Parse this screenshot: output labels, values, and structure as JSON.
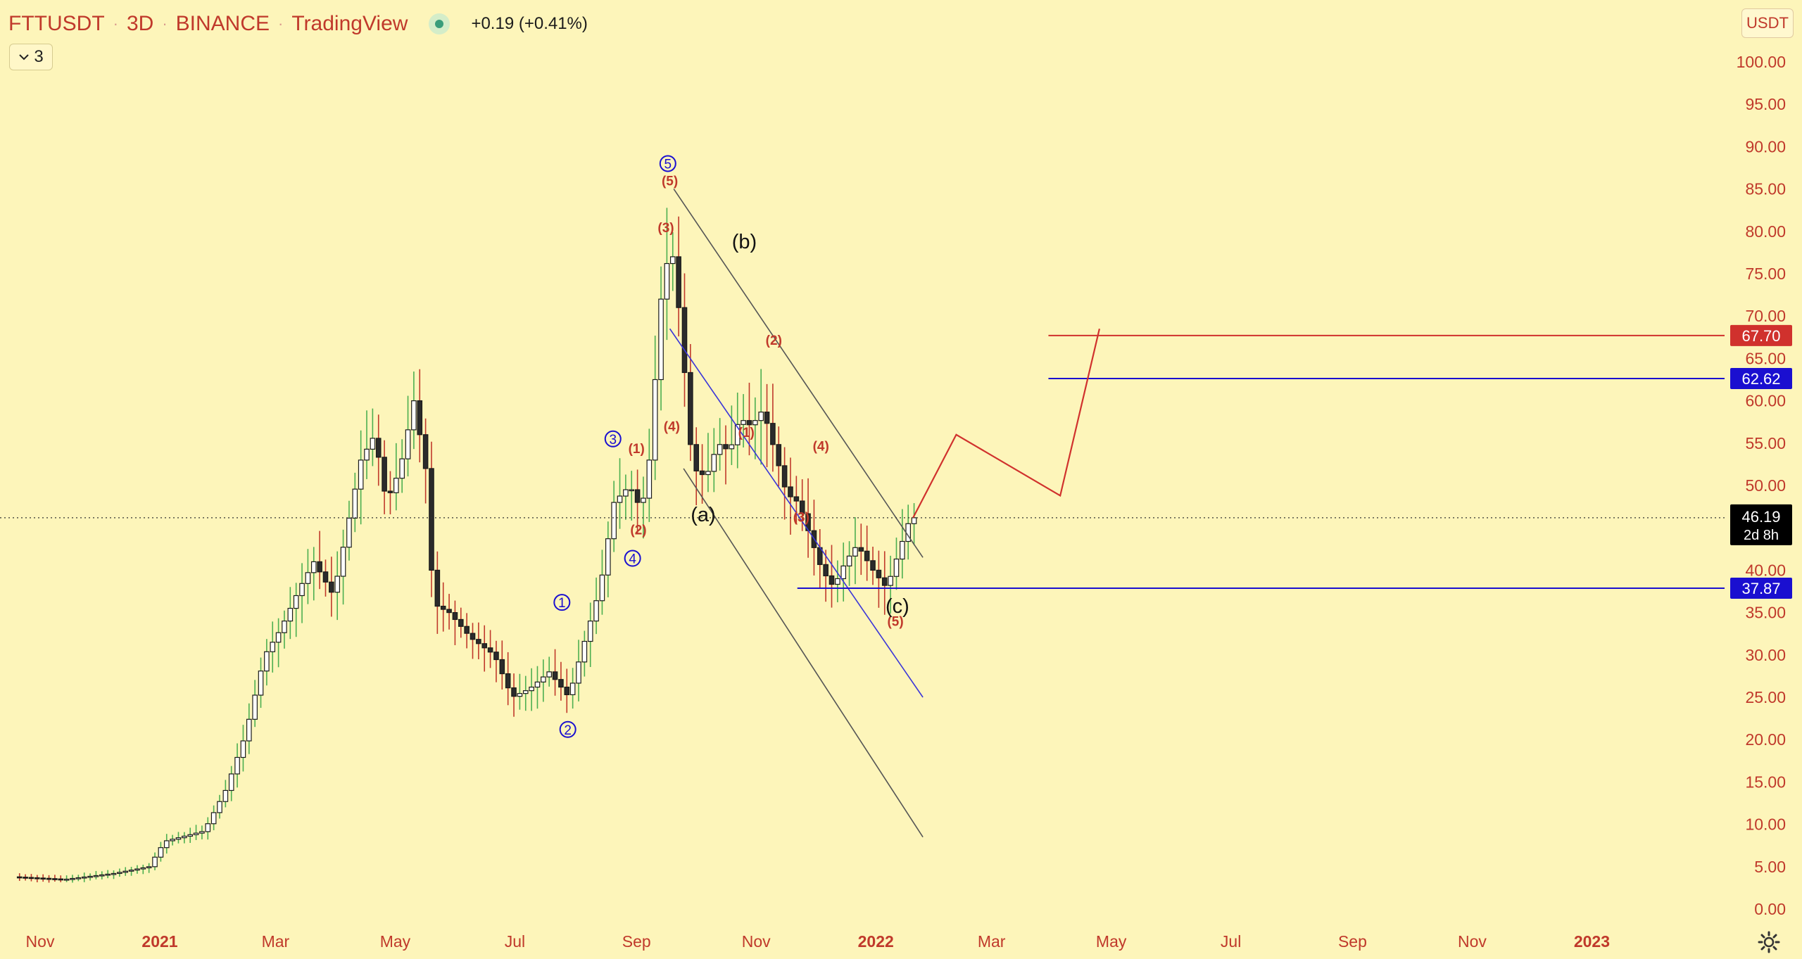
{
  "header": {
    "symbol": "FTTUSDT",
    "interval": "3D",
    "exchange": "BINANCE",
    "source": "TradingView",
    "change": "+0.19 (+0.41%)",
    "toggle_count": "3",
    "unit_label": "USDT"
  },
  "colors": {
    "background": "#fdf5ba",
    "axis_text": "#c0392b",
    "candle_body": "#ffffff",
    "candle_outline": "#1a1a1a",
    "wick_up": "#4caf50",
    "wick_down": "#c0392b",
    "wave_primary": "#1a0fd0",
    "wave_minor": "#c0392b",
    "projection": "#d0312d",
    "channel_grey": "#555555",
    "channel_blue": "#3a35d8"
  },
  "icons": [
    "chevron-down-icon",
    "live-dot-icon",
    "settings-gear-icon"
  ],
  "chart_data": {
    "type": "candlestick",
    "y_axis": {
      "min": 0,
      "max": 100,
      "ticks": [
        "100.00",
        "95.00",
        "90.00",
        "85.00",
        "80.00",
        "75.00",
        "70.00",
        "65.00",
        "60.00",
        "55.00",
        "50.00",
        "45.00",
        "40.00",
        "35.00",
        "30.00",
        "25.00",
        "20.00",
        "15.00",
        "10.00",
        "5.00",
        "0.00"
      ]
    },
    "x_axis": {
      "labels": [
        "Nov",
        "2021",
        "Mar",
        "May",
        "Jul",
        "Sep",
        "Nov",
        "2022",
        "Mar",
        "May",
        "Jul",
        "Sep",
        "Nov",
        "2023"
      ],
      "bold": [
        "2021",
        "2022",
        "2023"
      ]
    },
    "price_path": [
      [
        "2020-10-20",
        3.8
      ],
      [
        "2020-11-15",
        3.5
      ],
      [
        "2020-12-10",
        4.2
      ],
      [
        "2020-12-28",
        5.0
      ],
      [
        "2021-01-05",
        8.0
      ],
      [
        "2021-01-25",
        9.2
      ],
      [
        "2021-02-05",
        14.0
      ],
      [
        "2021-02-15",
        20.5
      ],
      [
        "2021-02-25",
        30.0
      ],
      [
        "2021-03-05",
        33.0
      ],
      [
        "2021-03-15",
        38.0
      ],
      [
        "2021-03-22",
        41.0
      ],
      [
        "2021-04-01",
        37.0
      ],
      [
        "2021-04-08",
        45.0
      ],
      [
        "2021-04-15",
        53.0
      ],
      [
        "2021-04-22",
        56.0
      ],
      [
        "2021-04-28",
        48.0
      ],
      [
        "2021-05-05",
        52.0
      ],
      [
        "2021-05-12",
        60.0
      ],
      [
        "2021-05-18",
        52.0
      ],
      [
        "2021-05-22",
        36.0
      ],
      [
        "2021-05-30",
        35.0
      ],
      [
        "2021-06-10",
        32.0
      ],
      [
        "2021-06-22",
        30.0
      ],
      [
        "2021-07-01",
        25.0
      ],
      [
        "2021-07-10",
        26.0
      ],
      [
        "2021-07-20",
        28.0
      ],
      [
        "2021-07-30",
        25.0
      ],
      [
        "2021-08-05",
        30.0
      ],
      [
        "2021-08-15",
        38.0
      ],
      [
        "2021-08-22",
        48.0
      ],
      [
        "2021-08-30",
        50.0
      ],
      [
        "2021-09-05",
        47.0
      ],
      [
        "2021-09-09",
        53.0
      ],
      [
        "2021-09-15",
        72.0
      ],
      [
        "2021-09-20",
        79.0
      ],
      [
        "2021-09-25",
        69.0
      ],
      [
        "2021-10-01",
        52.0
      ],
      [
        "2021-10-08",
        51.0
      ],
      [
        "2021-10-14",
        55.0
      ],
      [
        "2021-10-20",
        54.0
      ],
      [
        "2021-10-25",
        58.0
      ],
      [
        "2021-10-31",
        57.0
      ],
      [
        "2021-11-06",
        59.0
      ],
      [
        "2021-11-12",
        54.0
      ],
      [
        "2021-11-18",
        49.0
      ],
      [
        "2021-11-24",
        48.0
      ],
      [
        "2021-11-30",
        44.0
      ],
      [
        "2021-12-06",
        40.0
      ],
      [
        "2021-12-12",
        38.0
      ],
      [
        "2021-12-18",
        41.0
      ],
      [
        "2021-12-24",
        43.0
      ],
      [
        "2022-01-01",
        40.0
      ],
      [
        "2022-01-08",
        37.9
      ],
      [
        "2022-01-14",
        42.0
      ],
      [
        "2022-01-20",
        46.19
      ]
    ],
    "last_price": "46.19",
    "last_price_countdown": "2d 8h",
    "price_levels": [
      {
        "label": "67.70",
        "color": "#d0312d"
      },
      {
        "label": "62.62",
        "color": "#1a0fd0"
      },
      {
        "label": "37.87",
        "color": "#1a0fd0"
      }
    ],
    "level_values": [
      67.7,
      62.62,
      37.87
    ],
    "projection_path": [
      [
        "2022-01-20",
        46.19
      ],
      [
        "2022-02-11",
        56.0
      ],
      [
        "2022-04-05",
        48.8
      ],
      [
        "2022-04-25",
        68.5
      ]
    ],
    "channels": [
      {
        "color": "grey",
        "from": [
          "2021-09-20",
          85.0
        ],
        "to": [
          "2022-01-25",
          41.5
        ]
      },
      {
        "color": "grey",
        "from": [
          "2021-09-25",
          52.0
        ],
        "to": [
          "2022-01-25",
          8.5
        ]
      },
      {
        "color": "blue",
        "from": [
          "2021-09-18",
          68.5
        ],
        "to": [
          "2022-01-25",
          25.0
        ]
      }
    ],
    "wave_labels_primary": [
      {
        "text": "1",
        "x": "2021-07-25",
        "y": 36.2
      },
      {
        "text": "2",
        "x": "2021-07-28",
        "y": 21.2
      },
      {
        "text": "3",
        "x": "2021-08-20",
        "y": 55.5
      },
      {
        "text": "4",
        "x": "2021-08-30",
        "y": 41.4
      },
      {
        "text": "5",
        "x": "2021-09-17",
        "y": 88.0
      }
    ],
    "wave_labels_minor": [
      {
        "text": "(1)",
        "x": "2021-09-01",
        "y": 54.4
      },
      {
        "text": "(2)",
        "x": "2021-09-02",
        "y": 44.8
      },
      {
        "text": "(3)",
        "x": "2021-09-16",
        "y": 80.5
      },
      {
        "text": "(4)",
        "x": "2021-09-19",
        "y": 57.0
      },
      {
        "text": "(5)",
        "x": "2021-09-18",
        "y": 86.0
      },
      {
        "text": "(1)",
        "x": "2021-10-27",
        "y": 56.3
      },
      {
        "text": "(2)",
        "x": "2021-11-10",
        "y": 67.2
      },
      {
        "text": "(3)",
        "x": "2021-11-24",
        "y": 46.3
      },
      {
        "text": "(4)",
        "x": "2021-12-04",
        "y": 54.7
      },
      {
        "text": "(5)",
        "x": "2022-01-11",
        "y": 34.0
      }
    ],
    "wave_labels_abc": [
      {
        "text": "(a)",
        "x": "2021-10-05",
        "y": 46.6
      },
      {
        "text": "(b)",
        "x": "2021-10-26",
        "y": 78.8
      },
      {
        "text": "(c)",
        "x": "2022-01-12",
        "y": 35.8
      }
    ]
  }
}
